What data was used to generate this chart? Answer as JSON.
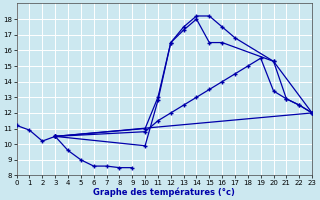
{
  "title": "Graphe des températures (°c)",
  "bg_color": "#cce8f0",
  "grid_color": "#ffffff",
  "line_color": "#0000aa",
  "xlim": [
    0,
    23
  ],
  "ylim": [
    8,
    19
  ],
  "xticks": [
    0,
    1,
    2,
    3,
    4,
    5,
    6,
    7,
    8,
    9,
    10,
    11,
    12,
    13,
    14,
    15,
    16,
    17,
    18,
    19,
    20,
    21,
    22,
    23
  ],
  "yticks": [
    8,
    9,
    10,
    11,
    12,
    13,
    14,
    15,
    16,
    17,
    18
  ],
  "curve1_x": [
    0,
    1,
    2,
    3,
    4,
    5,
    6,
    7,
    8,
    9
  ],
  "curve1_y": [
    11.2,
    10.9,
    10.2,
    10.5,
    9.6,
    9.0,
    8.6,
    8.6,
    8.5,
    8.5
  ],
  "curve2_x": [
    3,
    10,
    11,
    12,
    13,
    14,
    15,
    16,
    17,
    20,
    23
  ],
  "curve2_y": [
    10.5,
    9.9,
    12.8,
    16.5,
    17.5,
    18.2,
    18.2,
    17.5,
    16.8,
    15.3,
    12.0
  ],
  "curve3_x": [
    3,
    10,
    11,
    12,
    13,
    14,
    15,
    16,
    20,
    21,
    22,
    23
  ],
  "curve3_y": [
    10.5,
    11.0,
    13.0,
    16.5,
    17.3,
    18.0,
    16.5,
    16.5,
    15.3,
    12.9,
    12.5,
    12.0
  ],
  "curve4_x": [
    3,
    10,
    11,
    12,
    13,
    14,
    15,
    16,
    17,
    18,
    19,
    20,
    21,
    22,
    23
  ],
  "curve4_y": [
    10.5,
    10.8,
    11.5,
    12.0,
    12.5,
    13.0,
    13.5,
    14.0,
    14.5,
    15.0,
    15.5,
    13.4,
    12.9,
    12.5,
    12.0
  ],
  "curve5_x": [
    3,
    23
  ],
  "curve5_y": [
    10.5,
    12.0
  ]
}
